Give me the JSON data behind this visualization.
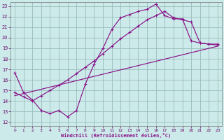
{
  "xlabel": "Windchill (Refroidissement éolien,°C)",
  "bg_color": "#cceaea",
  "grid_color": "#99bbbb",
  "line_color": "#881188",
  "xlim": [
    -0.5,
    23.5
  ],
  "ylim": [
    11.6,
    23.4
  ],
  "xticks": [
    0,
    1,
    2,
    3,
    4,
    5,
    6,
    7,
    8,
    9,
    10,
    11,
    12,
    13,
    14,
    15,
    16,
    17,
    18,
    19,
    20,
    21,
    22,
    23
  ],
  "yticks": [
    12,
    13,
    14,
    15,
    16,
    17,
    18,
    19,
    20,
    21,
    22,
    23
  ],
  "line1_x": [
    0,
    1,
    2,
    3,
    4,
    5,
    6,
    7,
    8,
    9,
    10,
    11,
    12,
    13,
    14,
    15,
    16,
    17,
    18,
    19,
    20,
    21,
    22,
    23
  ],
  "line1_y": [
    16.7,
    14.8,
    14.1,
    13.1,
    12.8,
    13.1,
    12.5,
    13.1,
    15.6,
    17.5,
    19.0,
    20.8,
    21.9,
    22.2,
    22.5,
    22.7,
    23.2,
    22.1,
    21.8,
    21.8,
    19.7,
    19.5,
    19.4,
    19.4
  ],
  "line2_x": [
    0,
    1,
    2,
    3,
    4,
    5,
    6,
    7,
    8,
    9,
    10,
    11,
    12,
    13,
    14,
    15,
    16,
    17,
    18,
    19,
    20,
    21,
    22,
    23
  ],
  "line2_y": [
    14.8,
    14.4,
    14.0,
    14.5,
    15.0,
    15.5,
    16.0,
    16.6,
    17.2,
    17.8,
    18.5,
    19.2,
    19.9,
    20.5,
    21.1,
    21.7,
    22.1,
    22.5,
    21.9,
    21.7,
    21.5,
    19.5,
    19.4,
    19.3
  ],
  "line3_x": [
    0,
    23
  ],
  "line3_y": [
    14.5,
    19.2
  ]
}
